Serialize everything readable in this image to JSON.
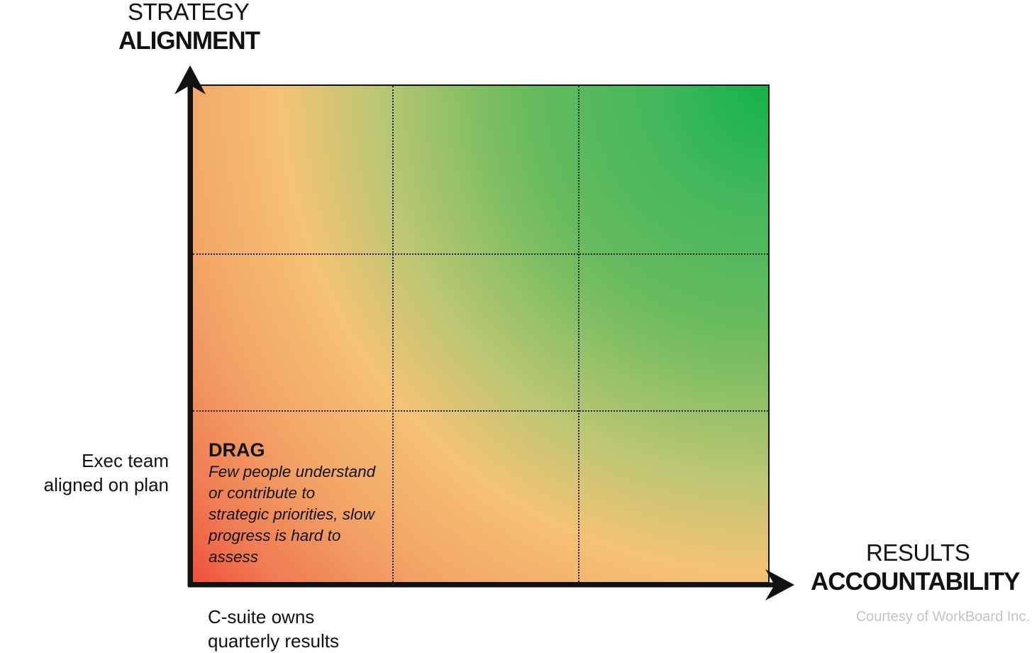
{
  "colors": {
    "top_right": "#12b24b",
    "middle": "#f4c274",
    "bottom_left": "#ee2f2b",
    "axis": "#111111",
    "credit": "#c4c4c4"
  },
  "y_axis": {
    "title_line1": "STRATEGY",
    "title_line2": "ALIGNMENT",
    "tick_label_line1": "Exec team",
    "tick_label_line2": "aligned on plan"
  },
  "x_axis": {
    "title_line1": "RESULTS",
    "title_line2": "ACCOUNTABILITY",
    "tick_label_line1": "C-suite owns",
    "tick_label_line2": "quarterly results"
  },
  "grid": {
    "rows": 3,
    "cols": 3
  },
  "cells": {
    "bottom_left": {
      "title": "DRAG",
      "description_lines": [
        "Few people understand",
        "or contribute to",
        "strategic priorities, slow",
        "progress is hard to",
        "assess"
      ]
    }
  },
  "credit": "Courtesy of WorkBoard Inc."
}
